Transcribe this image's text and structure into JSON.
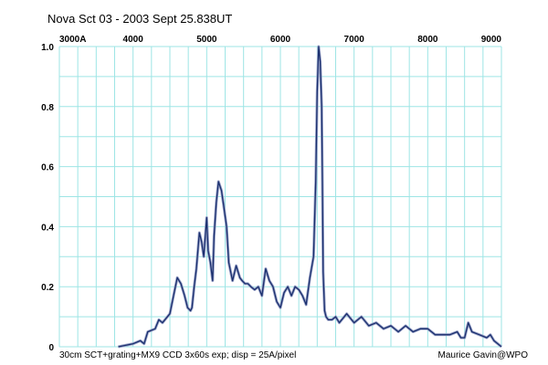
{
  "chart_data": {
    "type": "line",
    "title": "Nova Sct 03  - 2003 Sept  25.838UT",
    "x_tick_labels": [
      "3000A",
      "4000",
      "5000",
      "6000",
      "7000",
      "8000",
      "9000"
    ],
    "x_ticks": [
      3000,
      4000,
      5000,
      6000,
      7000,
      8000,
      9000
    ],
    "y_tick_labels": [
      "1.0",
      "0.8",
      "0.6",
      "0.4",
      "0.2",
      "0"
    ],
    "y_ticks": [
      1.0,
      0.8,
      0.6,
      0.4,
      0.2,
      0
    ],
    "xlim": [
      3000,
      9000
    ],
    "ylim": [
      0,
      1.0
    ],
    "grid": true,
    "series": [
      {
        "x": [
          3800,
          3900,
          4000,
          4100,
          4150,
          4200,
          4300,
          4350,
          4400,
          4500,
          4550,
          4600,
          4650,
          4700,
          4740,
          4780,
          4800,
          4830,
          4860,
          4900,
          4930,
          4960,
          5000,
          5020,
          5050,
          5080,
          5100,
          5130,
          5160,
          5200,
          5230,
          5270,
          5300,
          5350,
          5400,
          5450,
          5480,
          5520,
          5560,
          5600,
          5650,
          5700,
          5750,
          5800,
          5850,
          5900,
          5950,
          6000,
          6050,
          6100,
          6150,
          6200,
          6250,
          6300,
          6350,
          6400,
          6450,
          6480,
          6500,
          6520,
          6540,
          6560,
          6570,
          6580,
          6600,
          6620,
          6650,
          6700,
          6750,
          6800,
          6900,
          7000,
          7100,
          7200,
          7300,
          7400,
          7500,
          7600,
          7700,
          7800,
          7900,
          8000,
          8100,
          8200,
          8300,
          8400,
          8450,
          8500,
          8550,
          8600,
          8700,
          8800,
          8850,
          8900,
          8950,
          9000
        ],
        "y": [
          0.0,
          0.005,
          0.01,
          0.02,
          0.01,
          0.05,
          0.06,
          0.09,
          0.08,
          0.11,
          0.17,
          0.23,
          0.21,
          0.17,
          0.13,
          0.12,
          0.13,
          0.2,
          0.26,
          0.38,
          0.35,
          0.3,
          0.43,
          0.32,
          0.28,
          0.22,
          0.37,
          0.48,
          0.55,
          0.52,
          0.47,
          0.4,
          0.28,
          0.22,
          0.27,
          0.23,
          0.22,
          0.21,
          0.21,
          0.2,
          0.19,
          0.2,
          0.17,
          0.26,
          0.22,
          0.2,
          0.15,
          0.13,
          0.18,
          0.2,
          0.17,
          0.2,
          0.19,
          0.17,
          0.14,
          0.23,
          0.3,
          0.55,
          0.85,
          1.0,
          0.95,
          0.8,
          0.55,
          0.25,
          0.12,
          0.1,
          0.09,
          0.09,
          0.1,
          0.08,
          0.11,
          0.08,
          0.1,
          0.07,
          0.08,
          0.06,
          0.07,
          0.05,
          0.07,
          0.05,
          0.06,
          0.06,
          0.04,
          0.04,
          0.04,
          0.05,
          0.03,
          0.03,
          0.08,
          0.05,
          0.04,
          0.03,
          0.04,
          0.02,
          0.01,
          0.0
        ]
      }
    ],
    "colors": {
      "grid": "#9ee5e5",
      "line": "#1a2f6e",
      "line_halo": "#9aa3c8"
    }
  },
  "footer": {
    "left": "30cm SCT+grating+MX9 CCD 3x60s exp;  disp = 25A/pixel",
    "right": "Maurice Gavin@WPO"
  }
}
